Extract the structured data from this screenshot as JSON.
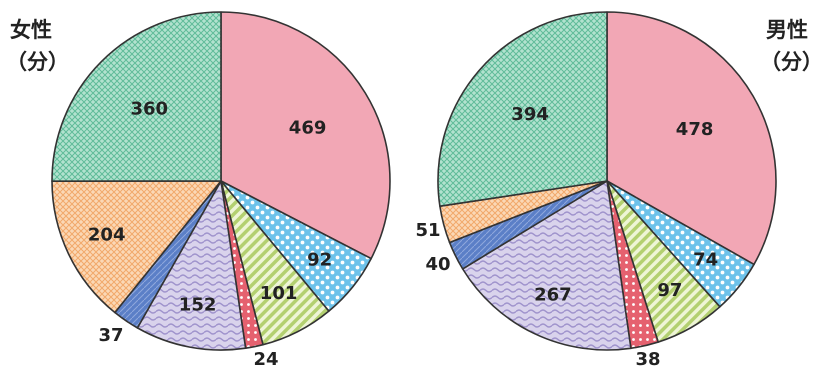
{
  "chart_data": [
    {
      "type": "pie",
      "title": "女性",
      "subtitle": "（分）",
      "categories": [
        "",
        "",
        "",
        "",
        "",
        "",
        "",
        ""
      ],
      "values": [
        469,
        92,
        101,
        24,
        152,
        37,
        204,
        360
      ],
      "labels": [
        "469",
        "92",
        "101",
        "24",
        "152",
        "37",
        "204",
        "360"
      ],
      "colors": [
        "#f2a7b5",
        "#6dc2ea",
        "#c7dc8c",
        "#ea6f7e",
        "#c9c2e2",
        "#5b7fc7",
        "#f8c59b",
        "#8ed2b8"
      ]
    },
    {
      "type": "pie",
      "title": "男性",
      "subtitle": "（分）",
      "categories": [
        "",
        "",
        "",
        "",
        "",
        "",
        "",
        ""
      ],
      "values": [
        478,
        74,
        97,
        38,
        267,
        40,
        51,
        394
      ],
      "labels": [
        "478",
        "74",
        "97",
        "38",
        "267",
        "40",
        "51",
        "394"
      ],
      "colors": [
        "#f2a7b5",
        "#6dc2ea",
        "#c7dc8c",
        "#ea6f7e",
        "#c9c2e2",
        "#5b7fc7",
        "#f8c59b",
        "#8ed2b8"
      ]
    }
  ]
}
